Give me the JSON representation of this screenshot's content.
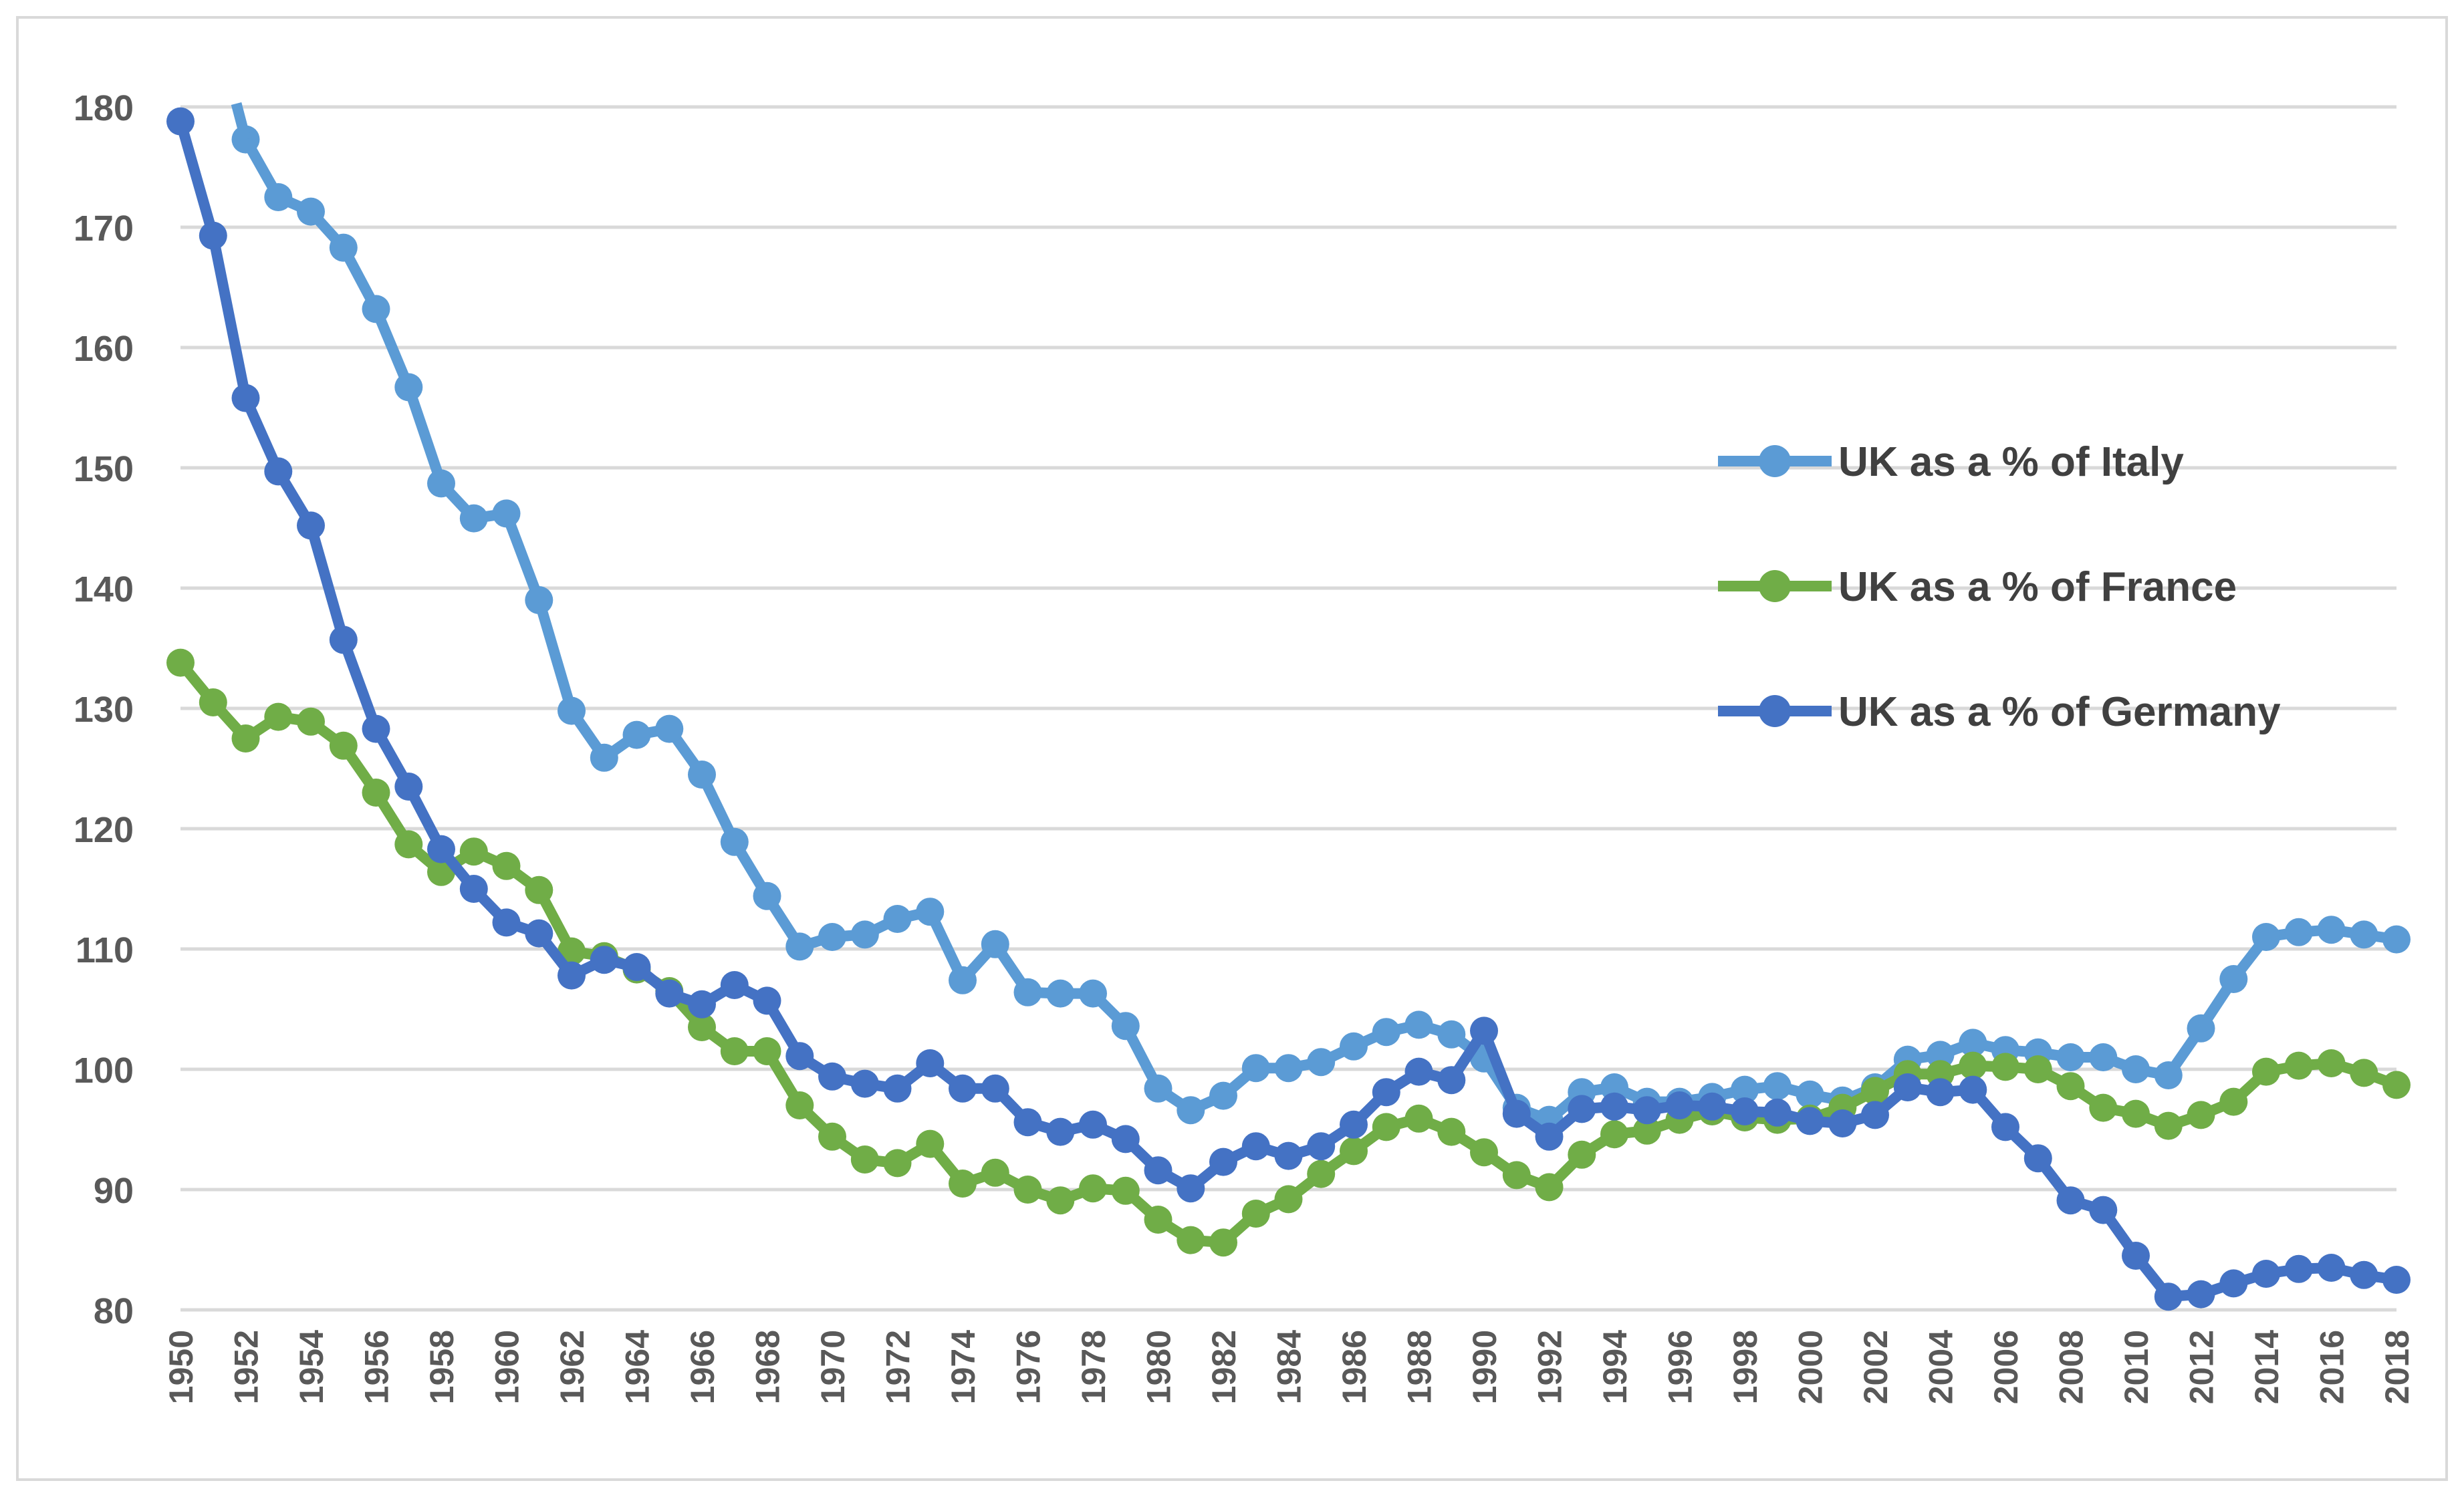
{
  "chart_data": {
    "type": "line",
    "title": "",
    "xlabel": "",
    "ylabel": "",
    "ylim": [
      80,
      180
    ],
    "yticks": [
      80,
      90,
      100,
      110,
      120,
      130,
      140,
      150,
      160,
      170,
      180
    ],
    "xlim": [
      1950,
      2018
    ],
    "xticks": [
      1950,
      1952,
      1954,
      1956,
      1958,
      1960,
      1962,
      1964,
      1966,
      1968,
      1970,
      1972,
      1974,
      1976,
      1978,
      1980,
      1982,
      1984,
      1986,
      1988,
      1990,
      1992,
      1994,
      1996,
      1998,
      2000,
      2002,
      2004,
      2006,
      2008,
      2010,
      2012,
      2014,
      2016,
      2018
    ],
    "grid": "horizontal",
    "legend_position": "right",
    "x": [
      1950,
      1951,
      1952,
      1953,
      1954,
      1955,
      1956,
      1957,
      1958,
      1959,
      1960,
      1961,
      1962,
      1963,
      1964,
      1965,
      1966,
      1967,
      1968,
      1969,
      1970,
      1971,
      1972,
      1973,
      1974,
      1975,
      1976,
      1977,
      1978,
      1979,
      1980,
      1981,
      1982,
      1983,
      1984,
      1985,
      1986,
      1987,
      1988,
      1989,
      1990,
      1991,
      1992,
      1993,
      1994,
      1995,
      1996,
      1997,
      1998,
      1999,
      2000,
      2001,
      2002,
      2003,
      2004,
      2005,
      2006,
      2007,
      2008,
      2009,
      2010,
      2011,
      2012,
      2013,
      2014,
      2015,
      2016,
      2017,
      2018
    ],
    "series": [
      {
        "name": "UK as a % of Italy",
        "color": "#5B9BD5",
        "values": [
          null,
          null,
          177.3,
          172.5,
          171.3,
          168.3,
          163.2,
          156.7,
          148.7,
          145.8,
          146.2,
          139.0,
          129.8,
          125.9,
          127.8,
          128.3,
          124.5,
          118.9,
          114.4,
          110.2,
          111.0,
          111.2,
          112.5,
          113.1,
          107.4,
          110.4,
          106.4,
          106.3,
          106.3,
          103.6,
          98.4,
          96.6,
          97.8,
          100.1,
          100.1,
          100.6,
          101.9,
          103.1,
          103.7,
          102.9,
          100.9,
          96.8,
          95.8,
          98.1,
          98.5,
          97.3,
          97.3,
          97.7,
          98.3,
          98.6,
          97.9,
          97.4,
          98.5,
          100.8,
          101.2,
          102.2,
          101.6,
          101.4,
          101.0,
          101.0,
          100.0,
          99.5,
          103.4,
          107.5,
          111.0,
          111.4,
          111.6,
          111.2,
          110.8
        ]
      },
      {
        "name": "UK as a % of France",
        "color": "#70AD47",
        "values": [
          133.8,
          130.5,
          127.5,
          129.3,
          128.9,
          126.9,
          123.0,
          118.7,
          116.4,
          118.1,
          116.9,
          114.9,
          109.8,
          109.4,
          108.3,
          106.5,
          103.5,
          101.5,
          101.5,
          97.0,
          94.4,
          92.5,
          92.2,
          93.8,
          90.5,
          91.4,
          90.0,
          89.1,
          90.1,
          89.9,
          87.5,
          85.8,
          85.6,
          88.0,
          89.2,
          91.3,
          93.2,
          95.2,
          95.9,
          94.8,
          93.1,
          91.2,
          90.2,
          92.9,
          94.6,
          94.9,
          95.8,
          96.5,
          96.0,
          95.8,
          95.9,
          96.8,
          98.2,
          99.6,
          99.6,
          100.3,
          100.2,
          100.0,
          98.6,
          96.8,
          96.3,
          95.3,
          96.2,
          97.3,
          99.8,
          100.3,
          100.5,
          99.7,
          98.7
        ]
      },
      {
        "name": "UK as a % of Germany",
        "color": "#4472C4",
        "values": [
          178.8,
          169.3,
          155.8,
          149.7,
          145.2,
          135.7,
          128.3,
          123.5,
          118.3,
          115.0,
          112.2,
          111.3,
          107.8,
          109.1,
          108.5,
          106.3,
          105.4,
          107.0,
          105.7,
          101.1,
          99.4,
          98.8,
          98.4,
          100.5,
          98.4,
          98.4,
          95.6,
          94.8,
          95.4,
          94.2,
          91.6,
          90.1,
          92.3,
          93.6,
          92.8,
          93.6,
          95.4,
          98.1,
          99.8,
          99.1,
          103.2,
          96.3,
          94.4,
          96.7,
          96.9,
          96.6,
          97.0,
          96.9,
          96.5,
          96.4,
          95.7,
          95.5,
          96.2,
          98.5,
          98.1,
          98.3,
          95.2,
          92.6,
          89.1,
          88.3,
          84.5,
          81.1,
          81.3,
          82.2,
          83.0,
          83.4,
          83.5,
          82.9,
          82.5
        ]
      }
    ]
  }
}
